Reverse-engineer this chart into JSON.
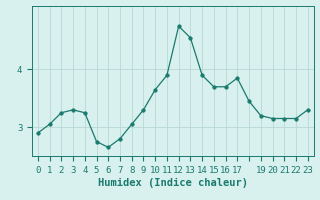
{
  "xlabel": "Humidex (Indice chaleur)",
  "ylabel": "",
  "background_color": "#d8f0ee",
  "line_color": "#1a7a6e",
  "marker_color": "#1a7a6e",
  "grid_color": "#b8d8d4",
  "x": [
    0,
    1,
    2,
    3,
    4,
    5,
    6,
    7,
    8,
    9,
    10,
    11,
    12,
    13,
    14,
    15,
    16,
    17,
    18,
    19,
    20,
    21,
    22,
    23
  ],
  "y": [
    2.9,
    3.05,
    3.25,
    3.3,
    3.25,
    2.75,
    2.65,
    2.8,
    3.05,
    3.3,
    3.65,
    3.9,
    4.75,
    4.55,
    3.9,
    3.7,
    3.7,
    3.85,
    3.45,
    3.2,
    3.15,
    3.15,
    3.15,
    3.3
  ],
  "xlim": [
    -0.5,
    23.5
  ],
  "ylim": [
    2.5,
    5.1
  ],
  "yticks": [
    3,
    4
  ],
  "xtick_labels": [
    "0",
    "1",
    "2",
    "3",
    "4",
    "5",
    "6",
    "7",
    "8",
    "9",
    "10",
    "11",
    "12",
    "13",
    "14",
    "15",
    "16",
    "17",
    "",
    "19",
    "20",
    "21",
    "22",
    "23"
  ],
  "label_fontsize": 7.5,
  "tick_fontsize": 6.5
}
